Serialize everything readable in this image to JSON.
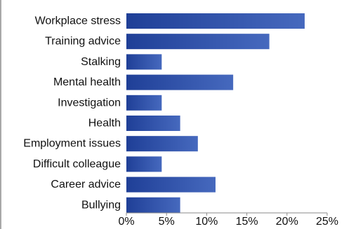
{
  "chart_data": {
    "type": "bar",
    "orientation": "horizontal",
    "categories": [
      "Workplace stress",
      "Training advice",
      "Stalking",
      "Mental health",
      "Investigation",
      "Health",
      "Employment issues",
      "Difficult colleague",
      "Career advice",
      "Bullying"
    ],
    "values": [
      22.2,
      17.8,
      4.4,
      13.3,
      4.4,
      6.7,
      8.9,
      4.4,
      11.1,
      6.7
    ],
    "xlim": [
      0,
      25
    ],
    "xticks": [
      "0%",
      "5%",
      "10%",
      "15%",
      "20%",
      "25%"
    ],
    "title": "",
    "xlabel": "",
    "ylabel": "",
    "grid": false,
    "legend": "none",
    "colors": {
      "bar_dark": "#1f3f97",
      "bar_light": "#4669be",
      "axis": "#8a8a8a",
      "text": "#111111"
    }
  }
}
